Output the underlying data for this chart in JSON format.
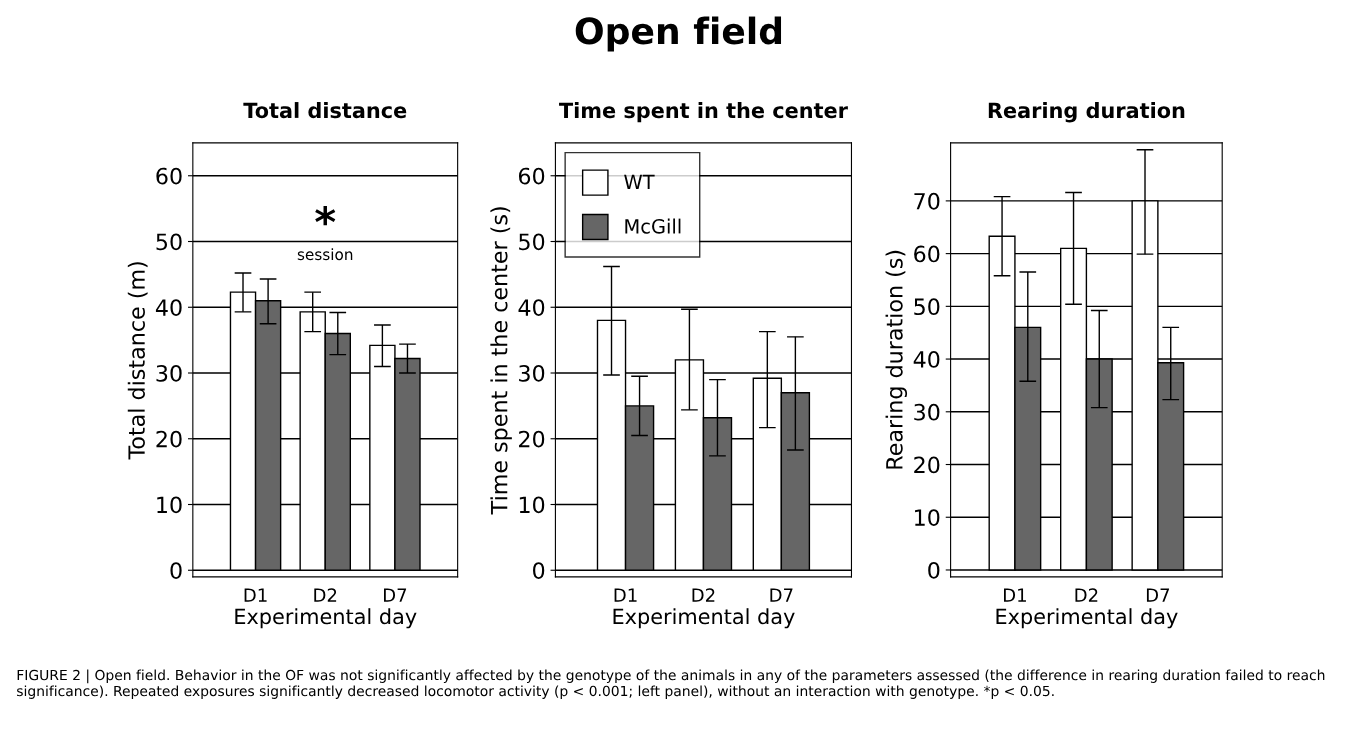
{
  "chart_data": [
    {
      "type": "bar",
      "title": "Total distance",
      "xlabel": "Experimental day",
      "ylabel": "Total distance (m)",
      "categories": [
        "D1",
        "D2",
        "D7"
      ],
      "ylim": [
        -1,
        65
      ],
      "yticks": [
        0,
        10,
        20,
        30,
        40,
        50,
        60
      ],
      "grid": "y",
      "legend": false,
      "series": [
        {
          "color": "#ffffff",
          "values": [
            42.3,
            39.3,
            34.2
          ],
          "errors": [
            [
              39.3,
              45.2
            ],
            [
              36.3,
              42.3
            ],
            [
              31.0,
              37.3
            ]
          ]
        },
        {
          "color": "#666666",
          "values": [
            41.0,
            36.0,
            32.2
          ],
          "errors": [
            [
              37.5,
              44.3
            ],
            [
              32.8,
              39.2
            ],
            [
              30.0,
              34.4
            ]
          ]
        }
      ],
      "annotations": [
        "Open field",
        "*",
        "session",
        "FIGURE 2 | Open field. Behavior in the OF was not significantly affected by the genotype of the animals in any of the parameters assessed (the difference in rearing duration failed to reach significance). Repeated exposures significantly decreased locomotor activity (p < 0.001; left panel), without an interaction with genotype. *p < 0.05."
      ]
    },
    {
      "type": "bar",
      "title": "Time spent in the center",
      "xlabel": "Experimental day",
      "ylabel": "Time spent in the center (s)",
      "categories": [
        "D1",
        "D2",
        "D7"
      ],
      "ylim": [
        -1,
        65
      ],
      "yticks": [
        0,
        10,
        20,
        30,
        40,
        50,
        60
      ],
      "grid": "y",
      "legend": "top left",
      "series": [
        {
          "name": "WT",
          "color": "#ffffff",
          "values": [
            38.0,
            32.0,
            29.2
          ],
          "errors": [
            [
              29.7,
              46.2
            ],
            [
              24.4,
              39.7
            ],
            [
              21.7,
              36.3
            ]
          ]
        },
        {
          "name": "McGill",
          "color": "#666666",
          "values": [
            25.0,
            23.2,
            27.0
          ],
          "errors": [
            [
              20.5,
              29.5
            ],
            [
              17.4,
              29.0
            ],
            [
              18.3,
              35.5
            ]
          ]
        }
      ]
    },
    {
      "type": "bar",
      "title": "Rearing duration",
      "xlabel": "Experimental day",
      "ylabel": "Rearing duration (s)",
      "categories": [
        "D1",
        "D2",
        "D7"
      ],
      "ylim": [
        -1.3,
        81
      ],
      "yticks": [
        0,
        10,
        20,
        30,
        40,
        50,
        60,
        70
      ],
      "grid": "y",
      "legend": false,
      "series": [
        {
          "color": "#ffffff",
          "values": [
            63.3,
            61.0,
            70.0
          ],
          "errors": [
            [
              55.8,
              70.8
            ],
            [
              50.4,
              71.6
            ],
            [
              59.9,
              79.7
            ]
          ]
        },
        {
          "color": "#666666",
          "values": [
            46.0,
            40.0,
            39.3
          ],
          "errors": [
            [
              35.8,
              56.5
            ],
            [
              30.8,
              49.2
            ],
            [
              32.3,
              46.0
            ]
          ]
        }
      ]
    }
  ]
}
